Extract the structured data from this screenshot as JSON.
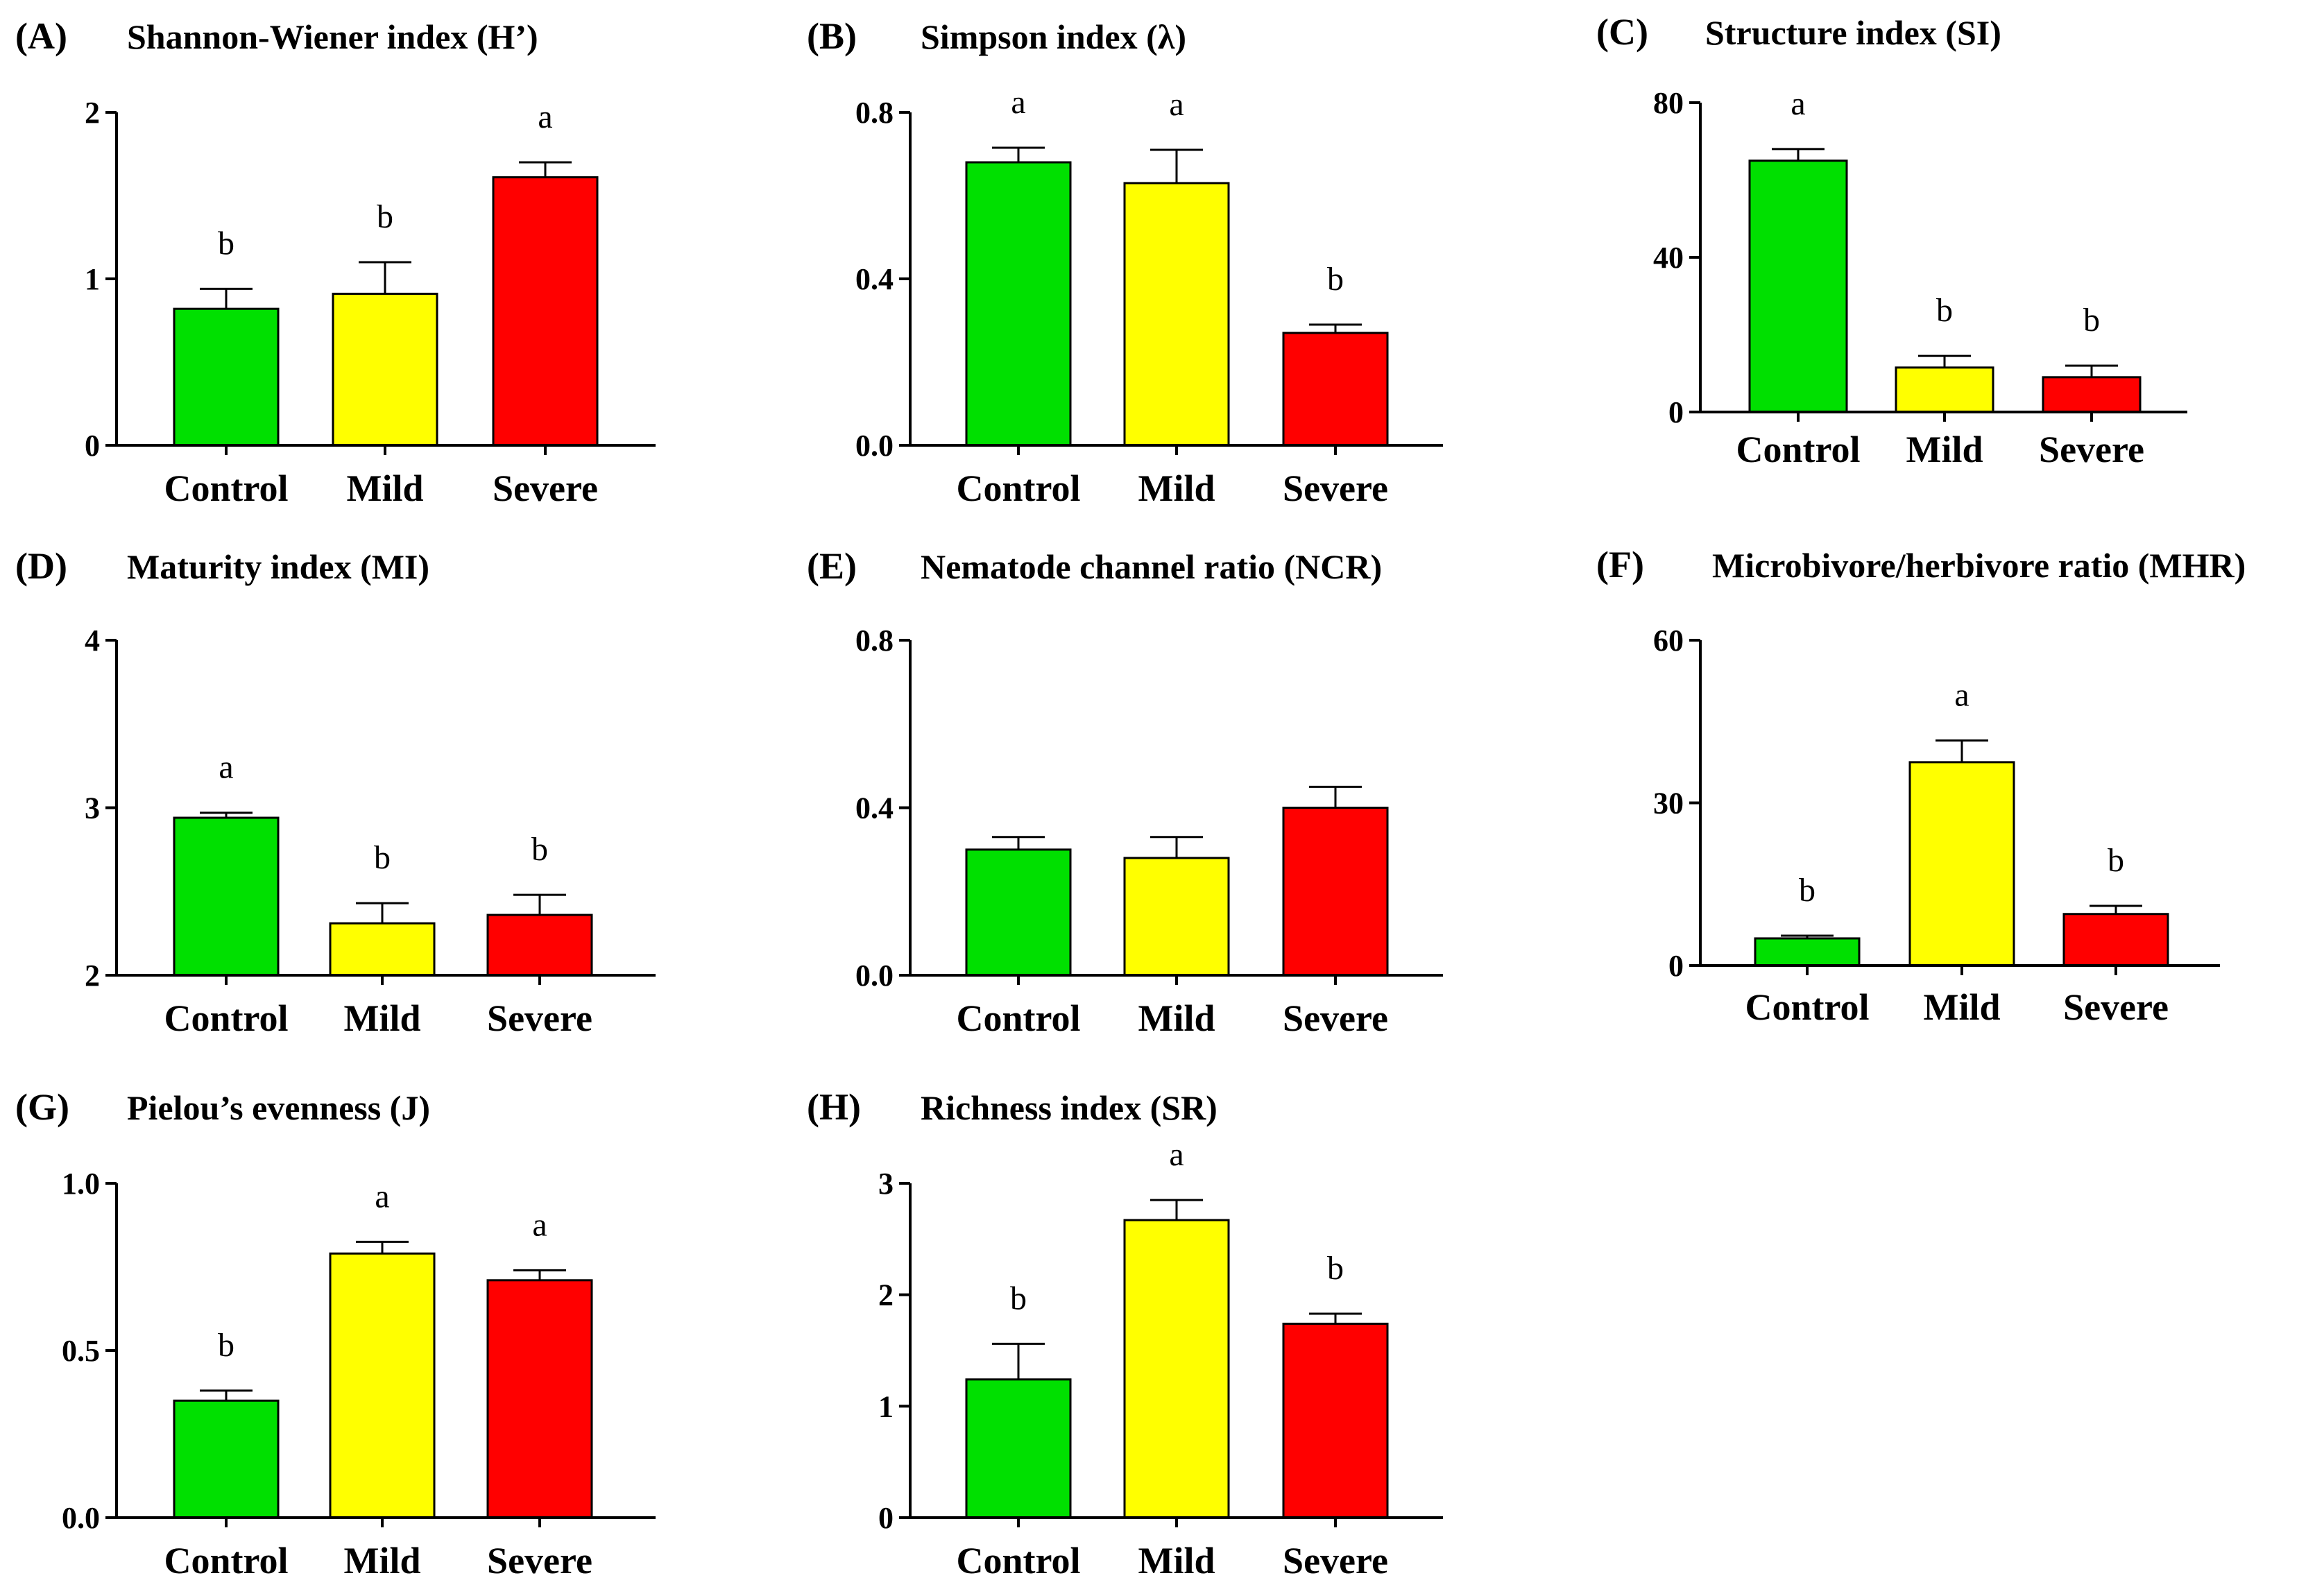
{
  "chart_data": [
    {
      "panel": "(A)",
      "type": "bar",
      "title": "Shannon-Wiener index (H’)",
      "categories": [
        "Control",
        "Mild",
        "Severe"
      ],
      "values": [
        0.82,
        0.91,
        1.61
      ],
      "errors": [
        0.12,
        0.19,
        0.09
      ],
      "significance": [
        "b",
        "b",
        "a"
      ],
      "ylim": [
        0,
        2
      ],
      "yticks": [
        0,
        1,
        2
      ],
      "ytick_labels": [
        "0",
        "1",
        "2"
      ],
      "xlabel": "",
      "ylabel": ""
    },
    {
      "panel": "(B)",
      "type": "bar",
      "title": "Simpson index (λ)",
      "categories": [
        "Control",
        "Mild",
        "Severe"
      ],
      "values": [
        0.68,
        0.63,
        0.27
      ],
      "errors": [
        0.035,
        0.08,
        0.02
      ],
      "significance": [
        "a",
        "a",
        "b"
      ],
      "ylim": [
        0,
        0.8
      ],
      "yticks": [
        0,
        0.4,
        0.8
      ],
      "ytick_labels": [
        "0.0",
        "0.4",
        "0.8"
      ],
      "xlabel": "",
      "ylabel": ""
    },
    {
      "panel": "(C)",
      "type": "bar",
      "title": "Structure index (SI)",
      "categories": [
        "Control",
        "Mild",
        "Severe"
      ],
      "values": [
        65,
        11.5,
        9
      ],
      "errors": [
        3,
        3,
        3
      ],
      "significance": [
        "a",
        "b",
        "b"
      ],
      "ylim": [
        0,
        80
      ],
      "yticks": [
        0,
        40,
        80
      ],
      "ytick_labels": [
        "0",
        "40",
        "80"
      ],
      "xlabel": "",
      "ylabel": ""
    },
    {
      "panel": "(D)",
      "type": "bar",
      "title": "Maturity index (MI)",
      "categories": [
        "Control",
        "Mild",
        "Severe"
      ],
      "values": [
        2.94,
        2.31,
        2.36
      ],
      "errors": [
        0.03,
        0.12,
        0.12
      ],
      "significance": [
        "a",
        "b",
        "b"
      ],
      "ylim": [
        2,
        4
      ],
      "yticks": [
        2,
        3,
        4
      ],
      "ytick_labels": [
        "2",
        "3",
        "4"
      ],
      "xlabel": "",
      "ylabel": ""
    },
    {
      "panel": "(E)",
      "type": "bar",
      "title": "Nematode channel ratio (NCR)",
      "categories": [
        "Control",
        "Mild",
        "Severe"
      ],
      "values": [
        0.3,
        0.28,
        0.4
      ],
      "errors": [
        0.03,
        0.05,
        0.05
      ],
      "significance": [
        "",
        "",
        ""
      ],
      "ylim": [
        0,
        0.8
      ],
      "yticks": [
        0,
        0.4,
        0.8
      ],
      "ytick_labels": [
        "0.0",
        "0.4",
        "0.8"
      ],
      "xlabel": "",
      "ylabel": ""
    },
    {
      "panel": "(F)",
      "type": "bar",
      "title": "Microbivore/herbivore ratio (MHR)",
      "categories": [
        "Control",
        "Mild",
        "Severe"
      ],
      "values": [
        5,
        37.5,
        9.5
      ],
      "errors": [
        0.5,
        4,
        1.5
      ],
      "significance": [
        "b",
        "a",
        "b"
      ],
      "ylim": [
        0,
        60
      ],
      "yticks": [
        0,
        30,
        60
      ],
      "ytick_labels": [
        "0",
        "30",
        "60"
      ],
      "xlabel": "",
      "ylabel": ""
    },
    {
      "panel": "(G)",
      "type": "bar",
      "title": "Pielou’s evenness (J)",
      "categories": [
        "Control",
        "Mild",
        "Severe"
      ],
      "values": [
        0.35,
        0.79,
        0.71
      ],
      "errors": [
        0.03,
        0.035,
        0.03
      ],
      "significance": [
        "b",
        "a",
        "a"
      ],
      "ylim": [
        0,
        1
      ],
      "yticks": [
        0,
        0.5,
        1
      ],
      "ytick_labels": [
        "0.0",
        "0.5",
        "1.0"
      ],
      "xlabel": "",
      "ylabel": ""
    },
    {
      "panel": "(H)",
      "type": "bar",
      "title": "Richness index (SR)",
      "categories": [
        "Control",
        "Mild",
        "Severe"
      ],
      "values": [
        1.24,
        2.67,
        1.74
      ],
      "errors": [
        0.32,
        0.18,
        0.09
      ],
      "significance": [
        "b",
        "a",
        "b"
      ],
      "ylim": [
        0,
        3
      ],
      "yticks": [
        0,
        1,
        2,
        3
      ],
      "ytick_labels": [
        "0",
        "1",
        "2",
        "3"
      ],
      "xlabel": "",
      "ylabel": ""
    }
  ],
  "colors": {
    "Control": "#00e000",
    "Mild": "#ffff00",
    "Severe": "#ff0000",
    "axis": "#000000",
    "bar_outline": "#000000"
  }
}
